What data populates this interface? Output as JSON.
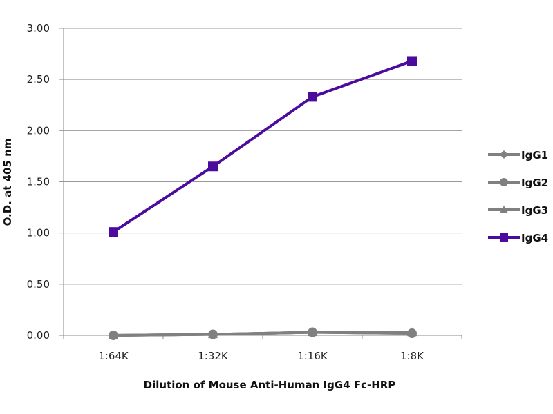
{
  "chart_data": {
    "type": "line",
    "title": "",
    "xlabel": "Dilution of Mouse Anti-Human IgG4 Fc-HRP",
    "ylabel": "O.D. at 405 nm",
    "categories": [
      "1:64K",
      "1:32K",
      "1:16K",
      "1:8K"
    ],
    "ylim": [
      0,
      3
    ],
    "yticks": [
      "0.00",
      "0.50",
      "1.00",
      "1.50",
      "2.00",
      "2.50",
      "3.00"
    ],
    "grid": true,
    "legend_position": "right",
    "series": [
      {
        "name": "IgG1",
        "values": [
          0.0,
          0.01,
          0.03,
          0.02
        ],
        "color": "#808080",
        "marker": "diamond"
      },
      {
        "name": "IgG2",
        "values": [
          0.0,
          0.01,
          0.03,
          0.02
        ],
        "color": "#808080",
        "marker": "circle"
      },
      {
        "name": "IgG3",
        "values": [
          0.0,
          0.01,
          0.03,
          0.03
        ],
        "color": "#808080",
        "marker": "triangle"
      },
      {
        "name": "IgG4",
        "values": [
          1.01,
          1.65,
          2.33,
          2.68
        ],
        "color": "#4B0C9E",
        "marker": "square"
      }
    ]
  }
}
